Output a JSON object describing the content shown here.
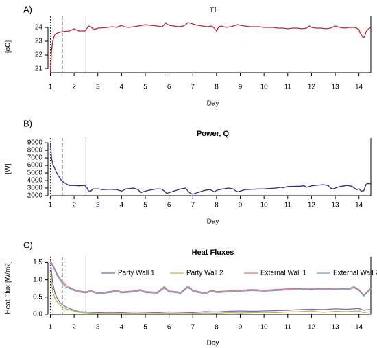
{
  "chart_data": [
    {
      "type": "line",
      "panel_label": "A)",
      "title": "Ti",
      "xlabel": "Day",
      "ylabel": "[oC]",
      "xlim": [
        0.9,
        14.5
      ],
      "ylim": [
        20.7,
        24.5
      ],
      "xticks": [
        1,
        2,
        3,
        4,
        5,
        6,
        7,
        8,
        9,
        10,
        11,
        12,
        13,
        14
      ],
      "yticks": [
        21,
        22,
        23,
        24
      ],
      "vlines": [
        {
          "x": 1.0,
          "style": "dotted"
        },
        {
          "x": 1.5,
          "style": "dashed"
        },
        {
          "x": 2.5,
          "style": "solid"
        }
      ],
      "series": [
        {
          "color": "#c0282d",
          "x": [
            1.0,
            1.05,
            1.1,
            1.15,
            1.2,
            1.3,
            1.4,
            1.5,
            1.6,
            1.8,
            2.0,
            2.2,
            2.45,
            2.55,
            2.6,
            2.7,
            2.8,
            2.9,
            3.0,
            3.2,
            3.4,
            3.6,
            3.8,
            3.9,
            4.0,
            4.1,
            4.3,
            4.5,
            4.7,
            4.9,
            5.0,
            5.2,
            5.5,
            5.7,
            5.8,
            5.85,
            5.9,
            6.0,
            6.2,
            6.4,
            6.6,
            6.7,
            6.8,
            6.9,
            7.0,
            7.2,
            7.4,
            7.6,
            7.8,
            7.9,
            8.0,
            8.05,
            8.1,
            8.2,
            8.4,
            8.6,
            8.8,
            8.9,
            9.0,
            9.2,
            9.4,
            9.6,
            9.8,
            10.0,
            10.2,
            10.4,
            10.6,
            10.8,
            11.0,
            11.2,
            11.4,
            11.6,
            11.8,
            11.9,
            12.0,
            12.2,
            12.4,
            12.6,
            12.8,
            13.0,
            13.2,
            13.4,
            13.6,
            13.8,
            13.9,
            14.0,
            14.05,
            14.1,
            14.15,
            14.2,
            14.25,
            14.3,
            14.4,
            14.5
          ],
          "y": [
            20.7,
            22.3,
            23.0,
            23.3,
            23.5,
            23.6,
            23.65,
            23.7,
            23.72,
            23.75,
            23.9,
            23.75,
            23.75,
            23.95,
            24.1,
            24.05,
            23.9,
            23.88,
            23.95,
            23.97,
            24.0,
            24.05,
            24.0,
            24.08,
            24.15,
            24.05,
            24.0,
            24.05,
            24.1,
            24.15,
            24.2,
            24.15,
            24.1,
            24.05,
            24.2,
            24.35,
            24.25,
            24.15,
            24.1,
            24.05,
            24.1,
            24.2,
            24.35,
            24.3,
            24.25,
            24.15,
            24.1,
            24.05,
            24.1,
            23.95,
            23.75,
            23.9,
            24.05,
            24.1,
            24.0,
            24.05,
            24.15,
            24.2,
            24.15,
            24.1,
            24.05,
            24.05,
            24.05,
            24.0,
            24.0,
            24.0,
            23.95,
            23.95,
            23.9,
            23.95,
            23.95,
            23.9,
            23.95,
            24.1,
            24.0,
            23.95,
            23.95,
            23.9,
            23.95,
            24.1,
            24.0,
            23.95,
            24.0,
            24.0,
            23.95,
            23.85,
            23.6,
            23.5,
            23.3,
            23.25,
            23.4,
            23.7,
            23.9,
            24.0
          ]
        }
      ]
    },
    {
      "type": "line",
      "panel_label": "B)",
      "title": "Power, Q",
      "xlabel": "Day",
      "ylabel": "[W]",
      "xlim": [
        0.9,
        14.5
      ],
      "ylim": [
        2000,
        9100
      ],
      "xticks": [
        1,
        2,
        3,
        4,
        5,
        6,
        7,
        8,
        9,
        10,
        11,
        12,
        13,
        14
      ],
      "yticks": [
        2000,
        3000,
        4000,
        5000,
        6000,
        7000,
        8000,
        9000
      ],
      "vlines": [
        {
          "x": 1.0,
          "style": "dotted"
        },
        {
          "x": 1.5,
          "style": "dashed"
        },
        {
          "x": 2.5,
          "style": "solid"
        }
      ],
      "series": [
        {
          "color": "#2b2d87",
          "x": [
            1.0,
            1.05,
            1.1,
            1.2,
            1.3,
            1.4,
            1.5,
            1.6,
            1.7,
            1.8,
            2.0,
            2.2,
            2.45,
            2.55,
            2.6,
            2.7,
            2.8,
            3.0,
            3.2,
            3.5,
            3.8,
            4.0,
            4.2,
            4.5,
            4.7,
            4.8,
            5.0,
            5.2,
            5.5,
            5.7,
            5.8,
            5.9,
            6.0,
            6.2,
            6.5,
            6.7,
            6.8,
            6.9,
            7.0,
            7.2,
            7.5,
            7.7,
            7.8,
            7.9,
            8.0,
            8.2,
            8.5,
            8.7,
            8.8,
            8.9,
            9.0,
            9.2,
            9.5,
            10.0,
            10.5,
            10.7,
            10.8,
            11.0,
            11.5,
            11.7,
            11.8,
            12.0,
            12.3,
            12.5,
            12.7,
            12.8,
            12.9,
            13.0,
            13.2,
            13.5,
            13.7,
            13.8,
            13.9,
            14.0,
            14.1,
            14.2,
            14.3,
            14.4,
            14.5
          ],
          "y": [
            9000,
            7000,
            6200,
            5500,
            4800,
            4300,
            3900,
            3700,
            3500,
            3350,
            3350,
            3300,
            3350,
            3000,
            2650,
            2600,
            2900,
            2900,
            2800,
            2850,
            2800,
            2600,
            2900,
            3000,
            2800,
            2400,
            2600,
            2750,
            2900,
            2850,
            2600,
            2300,
            2400,
            2600,
            2900,
            3000,
            2600,
            2300,
            2200,
            2400,
            2700,
            2800,
            2700,
            2500,
            2700,
            2850,
            3000,
            2900,
            2650,
            2500,
            2600,
            2800,
            2850,
            2900,
            3000,
            3100,
            3050,
            3200,
            3250,
            3300,
            3100,
            3300,
            3400,
            3450,
            3350,
            3000,
            2900,
            3000,
            3200,
            3350,
            3250,
            3000,
            2800,
            2900,
            2600,
            2650,
            3500,
            3600,
            3550
          ]
        }
      ]
    },
    {
      "type": "line",
      "panel_label": "C)",
      "title": "Heat Fluxes",
      "xlabel": "Day",
      "ylabel": "Heat Flux [W/m2]",
      "xlim": [
        0.9,
        14.5
      ],
      "ylim": [
        0,
        1.55
      ],
      "xticks": [
        1,
        2,
        3,
        4,
        5,
        6,
        7,
        8,
        9,
        10,
        11,
        12,
        13,
        14
      ],
      "yticks": [
        0.0,
        0.5,
        1.0,
        1.5
      ],
      "ytick_labels": [
        "0.0",
        "0.5",
        "1.0",
        "1.5"
      ],
      "vlines": [
        {
          "x": 1.0,
          "style": "dotted"
        },
        {
          "x": 1.5,
          "style": "dashed"
        },
        {
          "x": 2.5,
          "style": "solid"
        }
      ],
      "legend_position": "top",
      "series": [
        {
          "name": "Party Wall 1",
          "color": "#8b5fb0",
          "x": [
            1.0,
            1.1,
            1.2,
            1.3,
            1.4,
            1.5,
            1.7,
            2.0,
            2.2,
            2.5,
            3.0,
            3.5,
            4.0,
            4.5,
            5.0,
            5.5,
            6.0,
            6.5,
            7.0,
            7.5,
            8.0,
            8.5,
            9.0,
            9.5,
            10.0,
            10.5,
            11.0,
            11.5,
            12.0,
            12.5,
            13.0,
            13.5,
            14.0,
            14.2,
            14.5
          ],
          "y": [
            1.55,
            0.9,
            0.6,
            0.45,
            0.35,
            0.28,
            0.2,
            0.12,
            0.08,
            0.07,
            0.05,
            0.06,
            0.05,
            0.07,
            0.06,
            0.05,
            0.07,
            0.06,
            0.05,
            0.08,
            0.07,
            0.09,
            0.1,
            0.09,
            0.1,
            0.11,
            0.12,
            0.14,
            0.15,
            0.14,
            0.16,
            0.15,
            0.17,
            0.12,
            0.15
          ]
        },
        {
          "name": "Party Wall 2",
          "color": "#a8c43c",
          "x": [
            1.0,
            1.1,
            1.2,
            1.3,
            1.4,
            1.5,
            1.7,
            2.0,
            2.2,
            2.5,
            3.0,
            3.5,
            4.0,
            4.5,
            5.0,
            5.5,
            6.0,
            6.5,
            7.0,
            7.5,
            8.0,
            8.5,
            9.0,
            9.5,
            10.0,
            10.5,
            11.0,
            11.5,
            12.0,
            12.5,
            13.0,
            13.5,
            14.0,
            14.2,
            14.5
          ],
          "y": [
            1.2,
            0.65,
            0.45,
            0.35,
            0.28,
            0.22,
            0.15,
            0.1,
            0.06,
            0.04,
            0.02,
            0.03,
            0.02,
            0.03,
            0.02,
            0.02,
            0.03,
            0.02,
            0.02,
            0.04,
            0.03,
            0.05,
            0.04,
            0.05,
            0.06,
            0.05,
            0.07,
            0.08,
            0.1,
            0.06,
            0.09,
            0.08,
            0.1,
            0.05,
            0.08
          ]
        },
        {
          "name": "External Wall 1",
          "color": "#e0736b",
          "x": [
            1.0,
            1.1,
            1.2,
            1.3,
            1.4,
            1.5,
            1.7,
            2.0,
            2.2,
            2.5,
            2.7,
            3.0,
            3.5,
            3.8,
            4.0,
            4.5,
            4.8,
            5.0,
            5.5,
            5.8,
            6.0,
            6.5,
            6.8,
            7.0,
            7.5,
            7.8,
            8.0,
            8.5,
            9.0,
            9.5,
            10.0,
            10.5,
            11.0,
            11.5,
            12.0,
            12.5,
            13.0,
            13.5,
            13.8,
            14.0,
            14.2,
            14.5
          ],
          "y": [
            1.55,
            1.45,
            1.3,
            1.15,
            1.05,
            0.95,
            0.82,
            0.72,
            0.68,
            0.65,
            0.7,
            0.62,
            0.66,
            0.7,
            0.65,
            0.68,
            0.72,
            0.66,
            0.64,
            0.8,
            0.68,
            0.64,
            0.82,
            0.7,
            0.62,
            0.7,
            0.66,
            0.68,
            0.7,
            0.72,
            0.7,
            0.72,
            0.74,
            0.75,
            0.76,
            0.74,
            0.76,
            0.74,
            0.8,
            0.72,
            0.56,
            0.76
          ]
        },
        {
          "name": "External Wall 2",
          "color": "#6f9fd8",
          "x": [
            1.0,
            1.1,
            1.2,
            1.3,
            1.4,
            1.5,
            1.7,
            2.0,
            2.2,
            2.5,
            2.7,
            3.0,
            3.5,
            3.8,
            4.0,
            4.5,
            4.8,
            5.0,
            5.5,
            5.8,
            6.0,
            6.5,
            6.8,
            7.0,
            7.5,
            7.8,
            8.0,
            8.5,
            9.0,
            9.5,
            10.0,
            10.5,
            11.0,
            11.5,
            12.0,
            12.5,
            13.0,
            13.5,
            13.8,
            14.0,
            14.2,
            14.5
          ],
          "y": [
            1.5,
            1.4,
            1.25,
            1.1,
            1.0,
            0.9,
            0.78,
            0.69,
            0.65,
            0.62,
            0.67,
            0.59,
            0.63,
            0.67,
            0.62,
            0.65,
            0.69,
            0.63,
            0.61,
            0.76,
            0.65,
            0.61,
            0.78,
            0.67,
            0.59,
            0.67,
            0.63,
            0.65,
            0.67,
            0.69,
            0.67,
            0.69,
            0.71,
            0.72,
            0.73,
            0.71,
            0.73,
            0.71,
            0.77,
            0.69,
            0.53,
            0.73
          ]
        }
      ]
    }
  ]
}
